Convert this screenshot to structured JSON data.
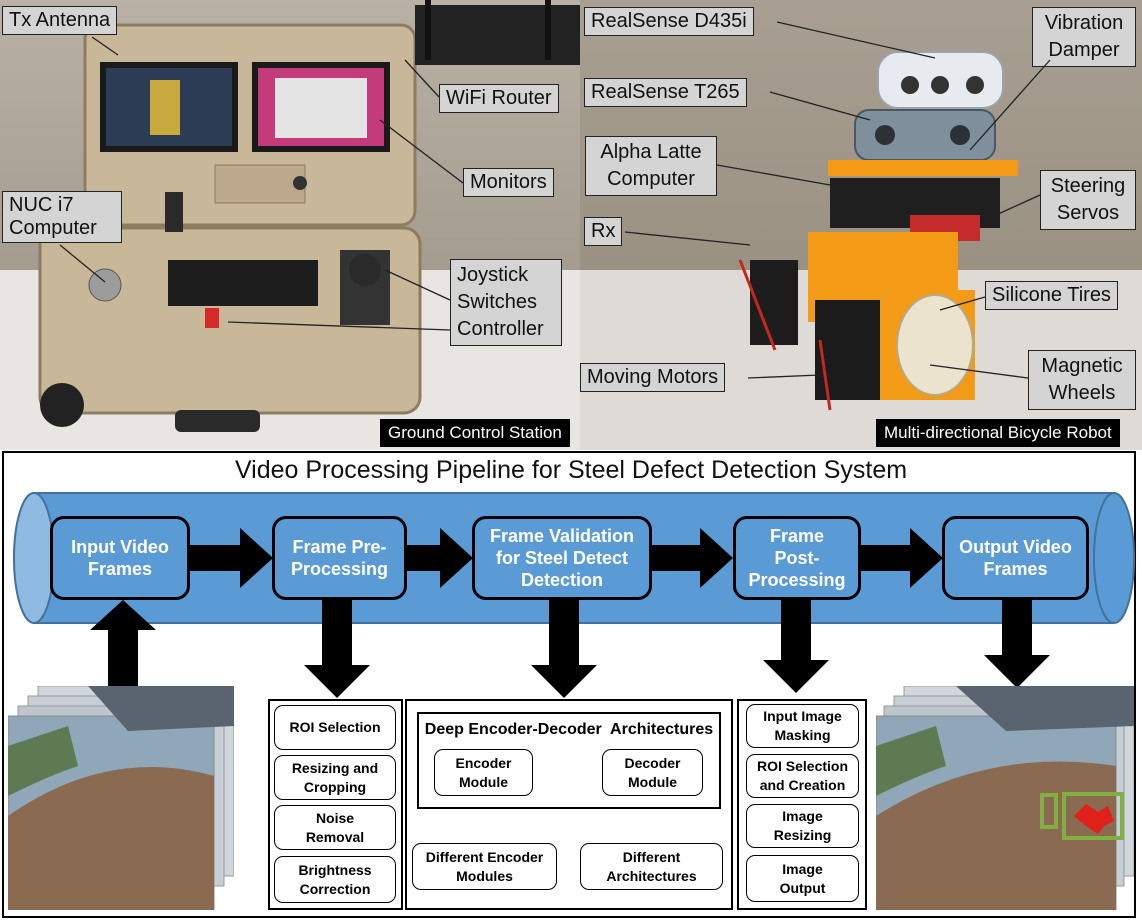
{
  "ground_station": {
    "caption": "Ground Control Station",
    "labels": {
      "tx_antenna": "Tx Antenna",
      "wifi_router": "WiFi Router",
      "monitors": "Monitors",
      "nuc": "NUC i7 Computer",
      "joystick": "Joystick Switches Controller"
    }
  },
  "robot": {
    "caption": "Multi-directional Bicycle Robot",
    "labels": {
      "d435i": "RealSense D435i",
      "t265": "RealSense T265",
      "vibration": "Vibration Damper",
      "alpha": "Alpha Latte Computer",
      "steering": "Steering Servos",
      "rx": "Rx",
      "tires": "Silicone Tires",
      "motors": "Moving Motors",
      "wheels": "Magnetic Wheels"
    }
  },
  "pipeline": {
    "title": "Video Processing Pipeline for Steel Defect Detection System",
    "stages": {
      "input": "Input Video Frames",
      "pre": "Frame Pre-Processing",
      "validation": "Frame Validation for Steel Detect Detection",
      "post": "Frame Post-Processing",
      "output": "Output Video Frames"
    },
    "pre_items": [
      "ROI Selection",
      "Resizing and Cropping",
      "Noise Removal",
      "Brightness Correction"
    ],
    "validation": {
      "heading": "Deep Encoder-Decoder  Architectures",
      "encoder": "Encoder Module",
      "decoder": "Decoder Module",
      "different_encoder": "Different Encoder Modules",
      "different_arch": "Different Architectures"
    },
    "post_items": [
      "Input Image Masking",
      "ROI Selection and Creation",
      "Image Resizing",
      "Image Output"
    ]
  },
  "colors": {
    "pipe_blue": "#5b9bd5",
    "callout_gray": "#d4d4d4",
    "defect_red": "#e0201a",
    "roi_green": "#7fb040"
  }
}
